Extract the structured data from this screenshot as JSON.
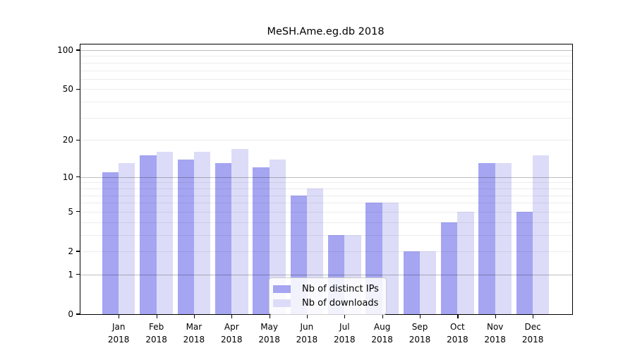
{
  "chart_data": {
    "type": "bar",
    "title": "MeSH.Ame.eg.db 2018",
    "categories": [
      "Jan",
      "Feb",
      "Mar",
      "Apr",
      "May",
      "Jun",
      "Jul",
      "Aug",
      "Sep",
      "Oct",
      "Nov",
      "Dec"
    ],
    "year_label": "2018",
    "series": [
      {
        "name": "Nb of distinct IPs",
        "color": "#a5a5f2",
        "values": [
          11,
          15,
          14,
          13,
          12,
          7,
          3,
          6,
          2,
          4,
          13,
          5
        ]
      },
      {
        "name": "Nb of downloads",
        "color": "#dcdcf8",
        "values": [
          13,
          16,
          16,
          17,
          14,
          8,
          3,
          6,
          2,
          5,
          13,
          15
        ]
      }
    ],
    "yticks": [
      0,
      1,
      2,
      5,
      10,
      20,
      50,
      100
    ],
    "ylim": [
      0,
      100
    ],
    "yscale": "log1p",
    "grid": {
      "minor_values": [
        2,
        3,
        4,
        5,
        6,
        7,
        8,
        9,
        20,
        30,
        40,
        50,
        60,
        70,
        80,
        90
      ],
      "major_values": [
        1,
        10,
        100
      ]
    },
    "legend_position": "inside-bottom-center",
    "frame_color": "#000000",
    "background_color": "#ffffff"
  }
}
